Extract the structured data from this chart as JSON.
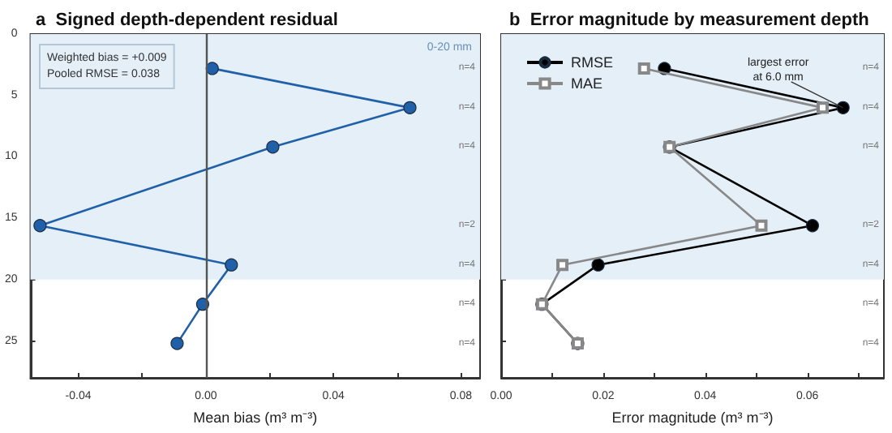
{
  "chart_data": [
    {
      "type": "line",
      "title": "a  Signed depth-dependent residual",
      "xlabel": "Mean bias (m³ m⁻³)",
      "series": [
        {
          "color": "#2060a8",
          "marker": "circle",
          "x": [
            0.002,
            0.064,
            0.021,
            -0.052,
            0.008,
            -0.001,
            -0.009
          ],
          "values": [
            2.8,
            6.0,
            9.2,
            15.6,
            18.8,
            22.0,
            25.2
          ]
        }
      ],
      "xlim": [
        -0.055,
        0.086
      ],
      "xticks": [
        {
          "value": -0.04,
          "label": "-0.04"
        },
        {
          "value": -0.02,
          "label": null
        },
        {
          "value": 0,
          "label": "0.00"
        },
        {
          "value": 0.02,
          "label": null
        },
        {
          "value": 0.04,
          "label": "0.04"
        },
        {
          "value": 0.06,
          "label": null
        },
        {
          "value": 0.08,
          "label": "0.08"
        }
      ],
      "ylim": [
        28,
        0
      ],
      "yticks": [
        0,
        5,
        10,
        15,
        20,
        25
      ],
      "ref_lines": [
        {
          "axis": "x",
          "value": 0,
          "label": null,
          "color": "#555555"
        }
      ],
      "bands": [
        {
          "axis": "y",
          "from": 0,
          "to": 20,
          "label": "0-20 mm",
          "color": "#e4eff8"
        }
      ],
      "annotations": [
        "Weighted bias = +0.009\nPooled RMSE = 0.038",
        "n=4",
        "n=4",
        "n=4",
        "n=2",
        "n=4",
        "n=4",
        "n=4"
      ],
      "grid": false,
      "legend": false
    },
    {
      "type": "line",
      "title": "b  Error magnitude by measurement depth",
      "xlabel": "Error magnitude (m³ m⁻³)",
      "series": [
        {
          "name": "RMSE",
          "color": "#000000",
          "marker": "circle",
          "x": [
            0.032,
            0.067,
            0.033,
            0.061,
            0.019,
            0.008,
            0.015
          ],
          "values": [
            2.8,
            6.0,
            9.2,
            15.6,
            18.8,
            22.0,
            25.2
          ]
        },
        {
          "name": "MAE",
          "color": "#888888",
          "marker": "square",
          "x": [
            0.028,
            0.063,
            0.033,
            0.051,
            0.012,
            0.008,
            0.015
          ],
          "values": [
            2.8,
            6.0,
            9.2,
            15.6,
            18.8,
            22.0,
            25.2
          ]
        }
      ],
      "xlim": [
        0,
        0.075
      ],
      "xticks": [
        {
          "value": 0,
          "label": "0.00"
        },
        {
          "value": 0.01,
          "label": null
        },
        {
          "value": 0.02,
          "label": "0.02"
        },
        {
          "value": 0.03,
          "label": null
        },
        {
          "value": 0.04,
          "label": "0.04"
        },
        {
          "value": 0.05,
          "label": null
        },
        {
          "value": 0.06,
          "label": "0.06"
        },
        {
          "value": 0.07,
          "label": null
        }
      ],
      "ylim": [
        28,
        0
      ],
      "yticks": [
        0,
        5,
        10,
        15,
        20,
        25
      ],
      "tick_labels": "x",
      "bands": [
        {
          "axis": "y",
          "from": 0,
          "to": 20,
          "label": null,
          "color": "#e4eff8"
        }
      ],
      "annotations": [
        {
          "text": "largest error\nat 6.0 mm",
          "x": 0.067,
          "y": 6.0
        },
        "n=4",
        "n=4",
        "n=4",
        "n=2",
        "n=4",
        "n=4",
        "n=4"
      ],
      "grid": false,
      "legend": "top left"
    }
  ]
}
